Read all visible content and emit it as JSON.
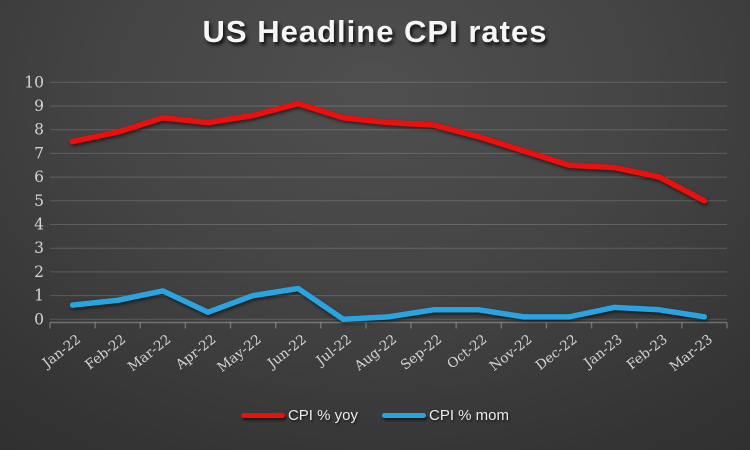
{
  "chart_data": {
    "type": "line",
    "title": "US Headline CPI rates",
    "categories": [
      "Jan-22",
      "Feb-22",
      "Mar-22",
      "Apr-22",
      "May-22",
      "Jun-22",
      "Jul-22",
      "Aug-22",
      "Sep-22",
      "Oct-22",
      "Nov-22",
      "Dec-22",
      "Jan-23",
      "Feb-23",
      "Mar-23"
    ],
    "series": [
      {
        "name": "CPI % yoy",
        "color": "#ed0e0e",
        "values": [
          7.5,
          7.9,
          8.5,
          8.3,
          8.6,
          9.1,
          8.5,
          8.3,
          8.2,
          7.7,
          7.1,
          6.5,
          6.4,
          6.0,
          5.0
        ]
      },
      {
        "name": "CPI % mom",
        "color": "#29a4e0",
        "values": [
          0.6,
          0.8,
          1.2,
          0.3,
          1.0,
          1.3,
          0.0,
          0.1,
          0.4,
          0.4,
          0.1,
          0.1,
          0.5,
          0.4,
          0.1
        ]
      }
    ],
    "xlabel": "",
    "ylabel": "",
    "ylim": [
      0,
      10
    ],
    "yticks": [
      0,
      1,
      2,
      3,
      4,
      5,
      6,
      7,
      8,
      9,
      10
    ],
    "grid": true,
    "legend_position": "bottom"
  },
  "colors": {
    "background_center": "#4f4f4f",
    "background_edge": "#262626",
    "gridline": "rgba(255,255,255,0.17)",
    "axis": "rgba(255,255,255,0.28)",
    "tick_text": "#d5d5d5",
    "title_text": "#f6f6f6"
  }
}
